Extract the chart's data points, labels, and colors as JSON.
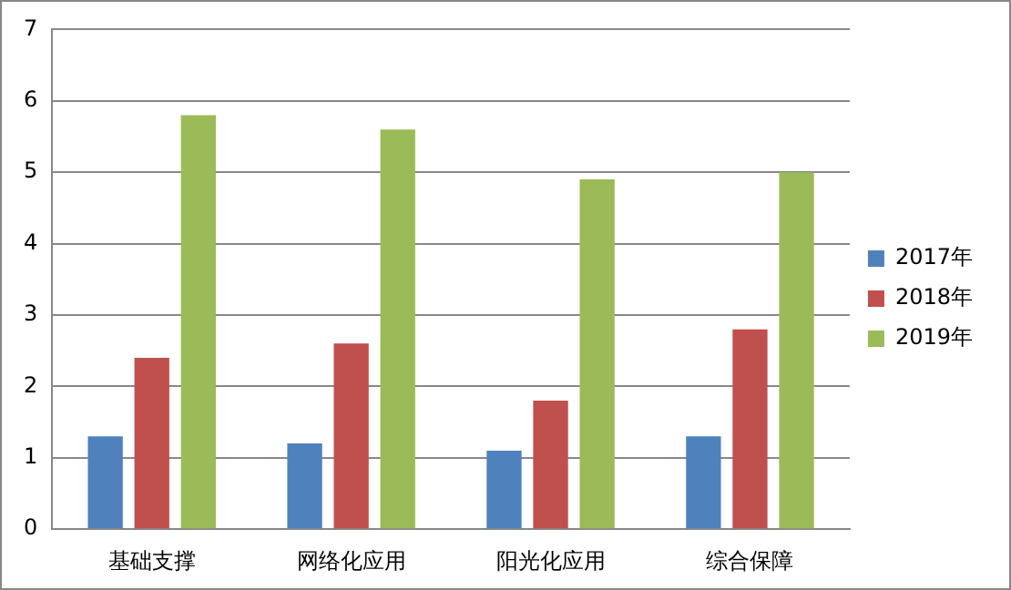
{
  "chart_data": {
    "type": "bar",
    "categories": [
      "基础支撑",
      "网络化应用",
      "阳光化应用",
      "综合保障"
    ],
    "series": [
      {
        "name": "2017年",
        "color": "#4f81bd",
        "values": [
          1.3,
          1.2,
          1.1,
          1.3
        ]
      },
      {
        "name": "2018年",
        "color": "#c0504d",
        "values": [
          2.4,
          2.6,
          1.8,
          2.8
        ]
      },
      {
        "name": "2019年",
        "color": "#9bbb59",
        "values": [
          5.8,
          5.6,
          4.9,
          5.0
        ]
      }
    ],
    "ylim": [
      0,
      7
    ],
    "yticks": [
      0,
      1,
      2,
      3,
      4,
      5,
      6,
      7
    ],
    "grid": "y",
    "legend": "right"
  }
}
